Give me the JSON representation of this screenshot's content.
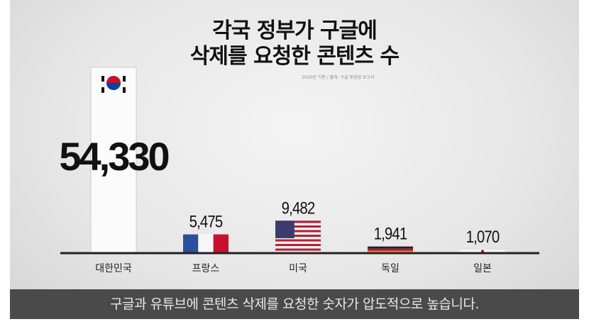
{
  "chart_data": {
    "type": "bar",
    "title": "각국 정부가 구글에 삭제를 요청한 콘텐츠 수",
    "title_lines": [
      "각국 정부가 구글에",
      "삭제를 요청한 콘텐츠 수"
    ],
    "source_note": "2020년 기준 / 출처: 구글 투명성 보고서",
    "categories": [
      "대한민국",
      "프랑스",
      "미국",
      "독일",
      "일본"
    ],
    "values": [
      54330,
      5475,
      9482,
      1941,
      1070
    ],
    "value_labels": [
      "54,330",
      "5,475",
      "9,482",
      "1,941",
      "1,070"
    ],
    "bar_styles": [
      "korea-flag",
      "france-flag",
      "usa-flag",
      "germany-flag",
      "japan-flag"
    ],
    "ylim": [
      0,
      54330
    ],
    "grid": false,
    "xlabel": "",
    "ylabel": ""
  },
  "footer": {
    "caption": "구글과 유튜브에 콘텐츠 삭제를 요청한 숫자가 압도적으로 높습니다."
  }
}
